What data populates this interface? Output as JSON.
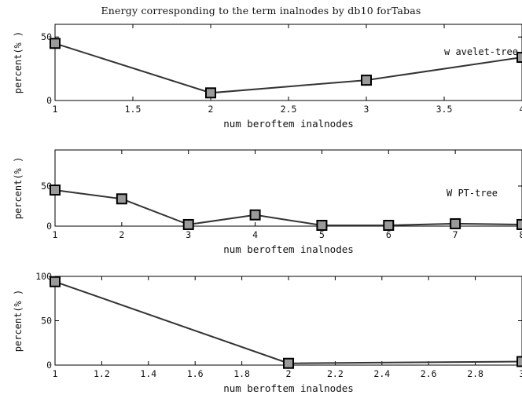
{
  "figure": {
    "title": "Energy corresponding to the term inalnodes by db10 forTabas"
  },
  "chart_data": [
    {
      "type": "line",
      "title": "Energy corresponding to the term inalnodes by db10 forTabas",
      "xlabel": "num beroftem inalnodes",
      "ylabel": "percent(% )",
      "xlim": [
        1,
        4
      ],
      "ylim": [
        0,
        60
      ],
      "xticks": [
        1,
        1.5,
        2,
        2.5,
        3,
        3.5,
        4
      ],
      "xtick_labels": [
        "1",
        "1.5",
        "2",
        "2.5",
        "3",
        "3.5",
        "4"
      ],
      "yticks": [
        0,
        50
      ],
      "ytick_labels": [
        "0",
        "50"
      ],
      "annotation": "w avelet-tree",
      "series": [
        {
          "x": [
            1,
            2,
            3,
            4
          ],
          "y": [
            45,
            6,
            16,
            34
          ]
        }
      ]
    },
    {
      "type": "line",
      "title": "",
      "xlabel": "num beroftem inalnodes",
      "ylabel": "percent(% )",
      "xlim": [
        1,
        8
      ],
      "ylim": [
        0,
        95
      ],
      "xticks": [
        1,
        2,
        3,
        4,
        5,
        6,
        7,
        8
      ],
      "xtick_labels": [
        "1",
        "2",
        "3",
        "4",
        "5",
        "6",
        "7",
        "8"
      ],
      "yticks": [
        0,
        50
      ],
      "ytick_labels": [
        "0",
        "50"
      ],
      "annotation": "W PT-tree",
      "series": [
        {
          "x": [
            1,
            2,
            3,
            4,
            5,
            6,
            7,
            8
          ],
          "y": [
            45,
            34,
            2,
            14,
            1,
            1,
            3,
            2
          ]
        }
      ]
    },
    {
      "type": "line",
      "title": "",
      "xlabel": "num beroftem inalnodes",
      "ylabel": "percent(% )",
      "xlim": [
        1,
        3
      ],
      "ylim": [
        0,
        100
      ],
      "xticks": [
        1,
        1.2,
        1.4,
        1.6,
        1.8,
        2,
        2.2,
        2.4,
        2.6,
        2.8,
        3
      ],
      "xtick_labels": [
        "1",
        "1.2",
        "1.4",
        "1.6",
        "1.8",
        "2",
        "2.2",
        "2.4",
        "2.6",
        "2.8",
        "3"
      ],
      "yticks": [
        0,
        50,
        100
      ],
      "ytick_labels": [
        "0",
        "50",
        "100"
      ],
      "annotation": "",
      "series": [
        {
          "x": [
            1,
            2,
            3
          ],
          "y": [
            94,
            2,
            4
          ]
        }
      ]
    }
  ]
}
